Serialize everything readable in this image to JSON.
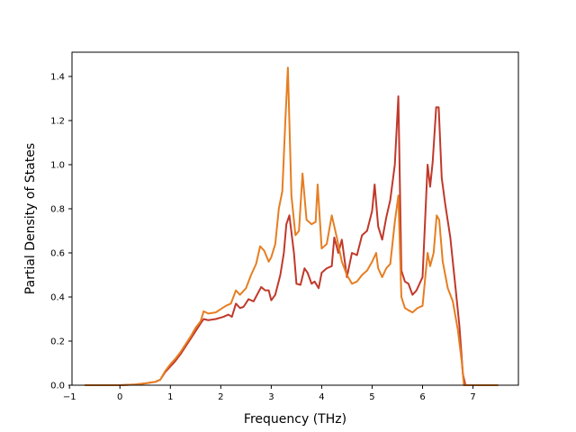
{
  "chart_data": {
    "type": "line",
    "title": "",
    "xlabel": "Frequency (THz)",
    "ylabel": "Partial Density of States",
    "xlim": [
      -0.95,
      7.9
    ],
    "ylim": [
      0.0,
      1.51
    ],
    "xticks": [
      -1,
      0,
      1,
      2,
      3,
      4,
      5,
      6,
      7
    ],
    "xtick_labels": [
      "−1",
      "0",
      "1",
      "2",
      "3",
      "4",
      "5",
      "6",
      "7"
    ],
    "yticks": [
      0.0,
      0.2,
      0.4,
      0.6,
      0.8,
      1.0,
      1.2,
      1.4
    ],
    "ytick_labels": [
      "0.0",
      "0.2",
      "0.4",
      "0.6",
      "0.8",
      "1.0",
      "1.2",
      "1.4"
    ],
    "grid": false,
    "legend": "none",
    "series": [
      {
        "color": "#c0392b",
        "points": [
          [
            -0.7,
            0.0
          ],
          [
            0.0,
            0.0
          ],
          [
            0.3,
            0.003
          ],
          [
            0.5,
            0.008
          ],
          [
            0.7,
            0.015
          ],
          [
            0.8,
            0.025
          ],
          [
            0.9,
            0.06
          ],
          [
            1.0,
            0.085
          ],
          [
            1.1,
            0.11
          ],
          [
            1.2,
            0.14
          ],
          [
            1.3,
            0.175
          ],
          [
            1.4,
            0.21
          ],
          [
            1.5,
            0.245
          ],
          [
            1.6,
            0.28
          ],
          [
            1.66,
            0.3
          ],
          [
            1.75,
            0.295
          ],
          [
            1.9,
            0.3
          ],
          [
            2.05,
            0.31
          ],
          [
            2.15,
            0.32
          ],
          [
            2.22,
            0.31
          ],
          [
            2.3,
            0.37
          ],
          [
            2.38,
            0.35
          ],
          [
            2.45,
            0.355
          ],
          [
            2.55,
            0.39
          ],
          [
            2.65,
            0.38
          ],
          [
            2.8,
            0.445
          ],
          [
            2.88,
            0.43
          ],
          [
            2.95,
            0.43
          ],
          [
            3.0,
            0.385
          ],
          [
            3.08,
            0.41
          ],
          [
            3.18,
            0.5
          ],
          [
            3.25,
            0.6
          ],
          [
            3.3,
            0.73
          ],
          [
            3.36,
            0.77
          ],
          [
            3.45,
            0.6
          ],
          [
            3.5,
            0.46
          ],
          [
            3.58,
            0.455
          ],
          [
            3.66,
            0.53
          ],
          [
            3.72,
            0.51
          ],
          [
            3.8,
            0.46
          ],
          [
            3.86,
            0.47
          ],
          [
            3.94,
            0.44
          ],
          [
            4.0,
            0.51
          ],
          [
            4.1,
            0.53
          ],
          [
            4.2,
            0.54
          ],
          [
            4.25,
            0.67
          ],
          [
            4.33,
            0.6
          ],
          [
            4.4,
            0.66
          ],
          [
            4.5,
            0.49
          ],
          [
            4.6,
            0.6
          ],
          [
            4.7,
            0.59
          ],
          [
            4.8,
            0.68
          ],
          [
            4.9,
            0.7
          ],
          [
            5.0,
            0.79
          ],
          [
            5.05,
            0.91
          ],
          [
            5.12,
            0.72
          ],
          [
            5.2,
            0.66
          ],
          [
            5.28,
            0.76
          ],
          [
            5.36,
            0.84
          ],
          [
            5.45,
            1.0
          ],
          [
            5.52,
            1.31
          ],
          [
            5.58,
            0.52
          ],
          [
            5.65,
            0.47
          ],
          [
            5.72,
            0.46
          ],
          [
            5.8,
            0.41
          ],
          [
            5.88,
            0.43
          ],
          [
            6.0,
            0.49
          ],
          [
            6.1,
            1.0
          ],
          [
            6.15,
            0.9
          ],
          [
            6.2,
            1.01
          ],
          [
            6.27,
            1.26
          ],
          [
            6.32,
            1.26
          ],
          [
            6.38,
            0.94
          ],
          [
            6.45,
            0.82
          ],
          [
            6.55,
            0.67
          ],
          [
            6.65,
            0.45
          ],
          [
            6.73,
            0.27
          ],
          [
            6.8,
            0.05
          ],
          [
            6.85,
            0.0
          ],
          [
            7.5,
            0.0
          ]
        ]
      },
      {
        "color": "#e67e22",
        "points": [
          [
            -0.7,
            0.0
          ],
          [
            0.0,
            0.0
          ],
          [
            0.3,
            0.003
          ],
          [
            0.5,
            0.008
          ],
          [
            0.7,
            0.015
          ],
          [
            0.8,
            0.025
          ],
          [
            0.9,
            0.065
          ],
          [
            1.0,
            0.095
          ],
          [
            1.1,
            0.12
          ],
          [
            1.2,
            0.15
          ],
          [
            1.3,
            0.185
          ],
          [
            1.4,
            0.22
          ],
          [
            1.5,
            0.26
          ],
          [
            1.6,
            0.29
          ],
          [
            1.66,
            0.335
          ],
          [
            1.75,
            0.325
          ],
          [
            1.9,
            0.33
          ],
          [
            2.0,
            0.345
          ],
          [
            2.1,
            0.36
          ],
          [
            2.2,
            0.37
          ],
          [
            2.3,
            0.43
          ],
          [
            2.38,
            0.41
          ],
          [
            2.5,
            0.44
          ],
          [
            2.6,
            0.5
          ],
          [
            2.7,
            0.55
          ],
          [
            2.78,
            0.63
          ],
          [
            2.86,
            0.61
          ],
          [
            2.95,
            0.56
          ],
          [
            3.0,
            0.58
          ],
          [
            3.08,
            0.64
          ],
          [
            3.15,
            0.8
          ],
          [
            3.22,
            0.88
          ],
          [
            3.28,
            1.2
          ],
          [
            3.33,
            1.44
          ],
          [
            3.4,
            0.86
          ],
          [
            3.48,
            0.68
          ],
          [
            3.55,
            0.7
          ],
          [
            3.62,
            0.96
          ],
          [
            3.7,
            0.75
          ],
          [
            3.8,
            0.73
          ],
          [
            3.88,
            0.74
          ],
          [
            3.92,
            0.91
          ],
          [
            4.0,
            0.62
          ],
          [
            4.1,
            0.64
          ],
          [
            4.2,
            0.77
          ],
          [
            4.3,
            0.67
          ],
          [
            4.4,
            0.56
          ],
          [
            4.5,
            0.5
          ],
          [
            4.6,
            0.46
          ],
          [
            4.7,
            0.47
          ],
          [
            4.8,
            0.5
          ],
          [
            4.9,
            0.52
          ],
          [
            5.0,
            0.56
          ],
          [
            5.08,
            0.6
          ],
          [
            5.12,
            0.53
          ],
          [
            5.2,
            0.49
          ],
          [
            5.28,
            0.53
          ],
          [
            5.36,
            0.55
          ],
          [
            5.45,
            0.74
          ],
          [
            5.52,
            0.86
          ],
          [
            5.58,
            0.4
          ],
          [
            5.65,
            0.35
          ],
          [
            5.72,
            0.34
          ],
          [
            5.8,
            0.33
          ],
          [
            5.9,
            0.35
          ],
          [
            6.0,
            0.36
          ],
          [
            6.1,
            0.6
          ],
          [
            6.15,
            0.54
          ],
          [
            6.22,
            0.6
          ],
          [
            6.28,
            0.77
          ],
          [
            6.33,
            0.75
          ],
          [
            6.4,
            0.56
          ],
          [
            6.5,
            0.44
          ],
          [
            6.6,
            0.38
          ],
          [
            6.7,
            0.25
          ],
          [
            6.78,
            0.1
          ],
          [
            6.82,
            0.0
          ],
          [
            7.5,
            0.0
          ]
        ]
      }
    ]
  }
}
